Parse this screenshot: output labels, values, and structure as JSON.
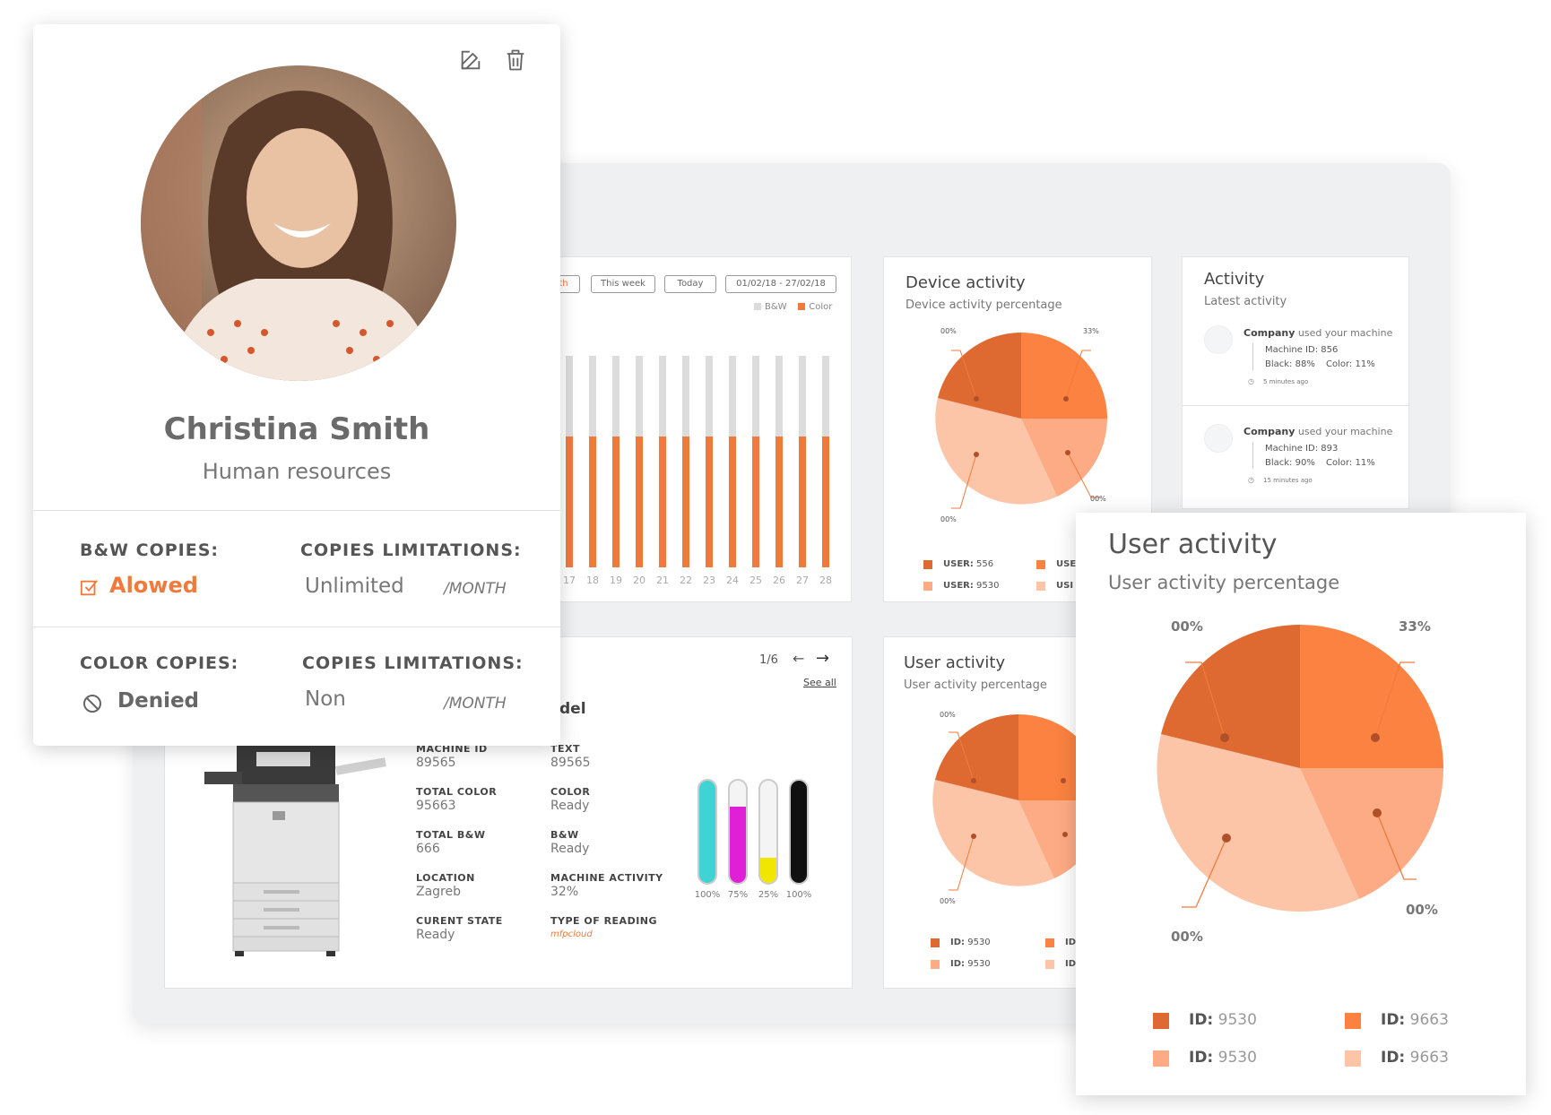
{
  "colors": {
    "dark_orange": "#de6a32",
    "orange": "#fb8240",
    "light_orange": "#fdab84",
    "pale_orange": "#fdc5a8",
    "bw_grey": "#dcdcdc",
    "accent": "#f07a3c"
  },
  "profile": {
    "name": "Christina Smith",
    "department": "Human resources",
    "edit_icon": "edit-icon",
    "delete_icon": "trash-icon",
    "bw_label": "B&W COPIES:",
    "bw_status": "Alowed",
    "bw_limit_label": "COPIES LIMITATIONS:",
    "bw_limit_value": "Unlimited",
    "bw_limit_unit": "/MONTH",
    "color_label": "COLOR COPIES:",
    "color_status": "Denied",
    "color_limit_label": "COPIES LIMITATIONS:",
    "color_limit_value": "Non",
    "color_limit_unit": "/MONTH"
  },
  "copies_chart": {
    "filters": [
      "th",
      "This week",
      "Today",
      "01/02/18  -  27/02/18"
    ],
    "legend": [
      "B&W",
      "Color"
    ],
    "days": [
      "17",
      "18",
      "19",
      "20",
      "21",
      "22",
      "23",
      "24",
      "25",
      "26",
      "27",
      "28"
    ],
    "bw_fraction": [
      1,
      1,
      1,
      1,
      1,
      1,
      1,
      1,
      1,
      1,
      1,
      1
    ],
    "color_fraction": [
      0.62,
      0.62,
      0.62,
      0.62,
      0.62,
      0.62,
      0.62,
      0.62,
      0.62,
      0.62,
      0.62,
      0.62
    ]
  },
  "device_activity": {
    "title": "Device activity",
    "subtitle": "Device activity percentage",
    "callouts": [
      "00%",
      "33%",
      "00%",
      "00%"
    ],
    "legend": [
      {
        "label": "USER:",
        "value": "556"
      },
      {
        "label": "USE",
        "value": ""
      },
      {
        "label": "USER:",
        "value": "9530"
      },
      {
        "label": "USI",
        "value": ""
      }
    ]
  },
  "activity": {
    "title": "Activity",
    "subtitle": "Latest activity",
    "items": [
      {
        "company": "Company",
        "action": "used your machine",
        "machine": "Machine ID: 856",
        "black": "Black: 88%",
        "color": "Color: 11%",
        "time": "5 minutes ago"
      },
      {
        "company": "Company",
        "action": "used your machine",
        "machine": "Machine ID: 893",
        "black": "Black: 90%",
        "color": "Color: 11%",
        "time": "15 minutes ago"
      }
    ]
  },
  "machine": {
    "pager": "1/6",
    "see_all": "See all",
    "model_partial": "del",
    "fields_left": [
      {
        "label": "MACHINE ID",
        "value": "89565"
      },
      {
        "label": "TOTAL COLOR",
        "value": "95663"
      },
      {
        "label": "TOTAL B&W",
        "value": "666"
      },
      {
        "label": "LOCATION",
        "value": "Zagreb"
      },
      {
        "label": "CURENT STATE",
        "value": "Ready"
      }
    ],
    "fields_right": [
      {
        "label": "TEXT",
        "value": "89565"
      },
      {
        "label": "COLOR",
        "value": "Ready"
      },
      {
        "label": "B&W",
        "value": "Ready"
      },
      {
        "label": "MACHINE ACTIVITY",
        "value": "32%"
      },
      {
        "label": "TYPE OF READING",
        "value": "mfpcloud"
      }
    ],
    "toner": [
      {
        "label": "100%",
        "level": 1.0,
        "color": "#3fd3d3"
      },
      {
        "label": "75%",
        "level": 0.75,
        "color": "#e020d6"
      },
      {
        "label": "25%",
        "level": 0.25,
        "color": "#f0e600"
      },
      {
        "label": "100%",
        "level": 1.0,
        "color": "#111111"
      }
    ]
  },
  "user_activity_small": {
    "title": "User activity",
    "subtitle": "User activity percentage",
    "callouts": [
      "00%",
      "00%"
    ],
    "legend": [
      {
        "label": "ID:",
        "value": "9530"
      },
      {
        "label": "ID",
        "value": ""
      },
      {
        "label": "ID:",
        "value": "9530"
      },
      {
        "label": "ID",
        "value": ""
      }
    ]
  },
  "user_activity_big": {
    "title": "User activity",
    "subtitle": "User activity percentage",
    "callouts": [
      "00%",
      "33%",
      "00%",
      "00%"
    ],
    "legend": [
      {
        "label": "ID:",
        "value": "9530"
      },
      {
        "label": "ID:",
        "value": "9663"
      },
      {
        "label": "ID:",
        "value": "9530"
      },
      {
        "label": "ID:",
        "value": "9663"
      }
    ]
  }
}
